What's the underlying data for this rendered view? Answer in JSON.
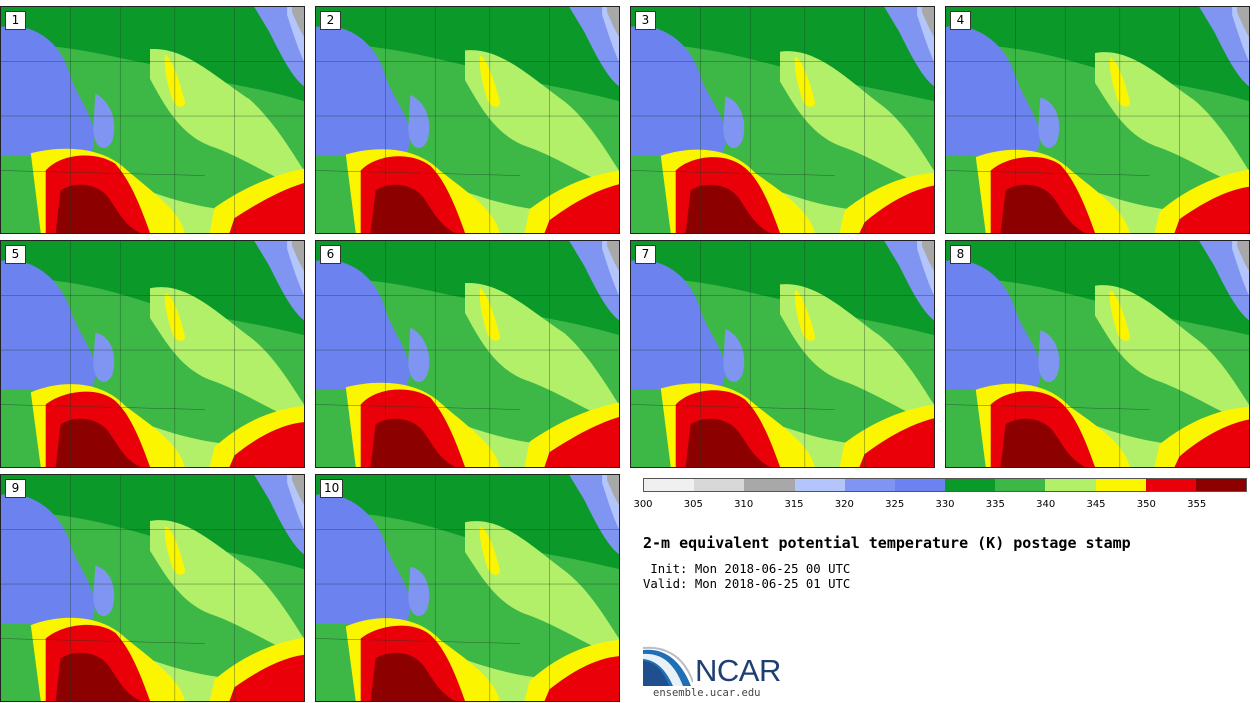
{
  "panels": [
    {
      "label": "1"
    },
    {
      "label": "2"
    },
    {
      "label": "3"
    },
    {
      "label": "4"
    },
    {
      "label": "5"
    },
    {
      "label": "6"
    },
    {
      "label": "7"
    },
    {
      "label": "8"
    },
    {
      "label": "9"
    },
    {
      "label": "10"
    }
  ],
  "colorbar": {
    "colors": [
      "#f0f0f0",
      "#d8d8d8",
      "#a8a8a8",
      "#b3c5fa",
      "#8095f2",
      "#6c82ef",
      "#0b9a2a",
      "#3db847",
      "#b3f06a",
      "#fcf500",
      "#e90009",
      "#8c0000"
    ],
    "ticks": [
      "300",
      "305",
      "310",
      "315",
      "320",
      "325",
      "330",
      "335",
      "340",
      "345",
      "350",
      "355"
    ]
  },
  "title": "2-m equivalent potential temperature (K) postage stamp",
  "init_line": " Init: Mon 2018-06-25 00 UTC",
  "valid_line": "Valid: Mon 2018-06-25 01 UTC",
  "logo": {
    "name": "NCAR",
    "url": "ensemble.ucar.edu"
  }
}
